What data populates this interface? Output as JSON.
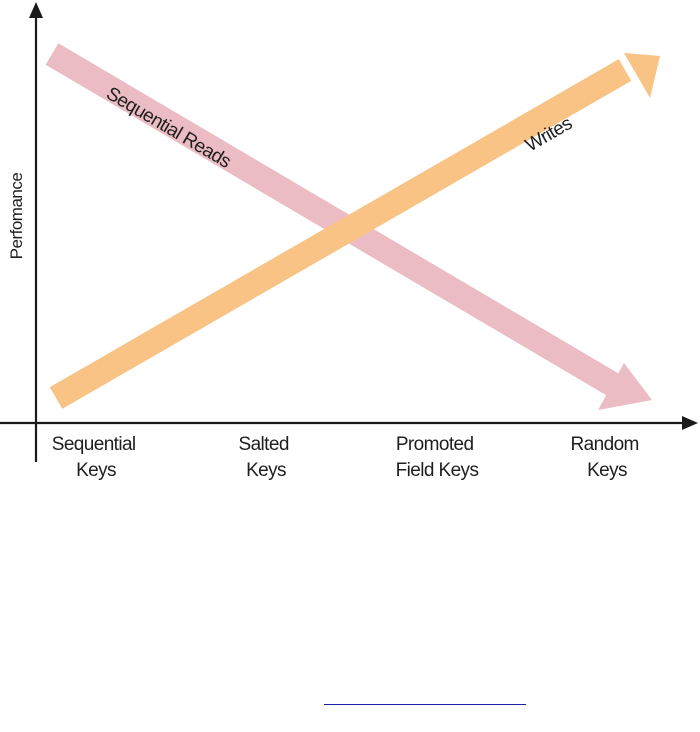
{
  "diagram": {
    "ylabel": "Perfomance",
    "categories": [
      [
        "Sequential",
        "Keys"
      ],
      [
        "Salted",
        "Keys"
      ],
      [
        "Promoted",
        "Field Keys"
      ],
      [
        "Random",
        "Keys"
      ]
    ],
    "arrows": [
      {
        "label": "Sequential Reads",
        "color": "#ebbcc3",
        "trend": "decreasing"
      },
      {
        "label": "Writes",
        "color": "#f8c384",
        "trend": "increasing"
      }
    ],
    "colors": {
      "axis": "#1a1a1a",
      "text": "#1f1f1f",
      "footer_rule": "#1a1fa6"
    }
  }
}
